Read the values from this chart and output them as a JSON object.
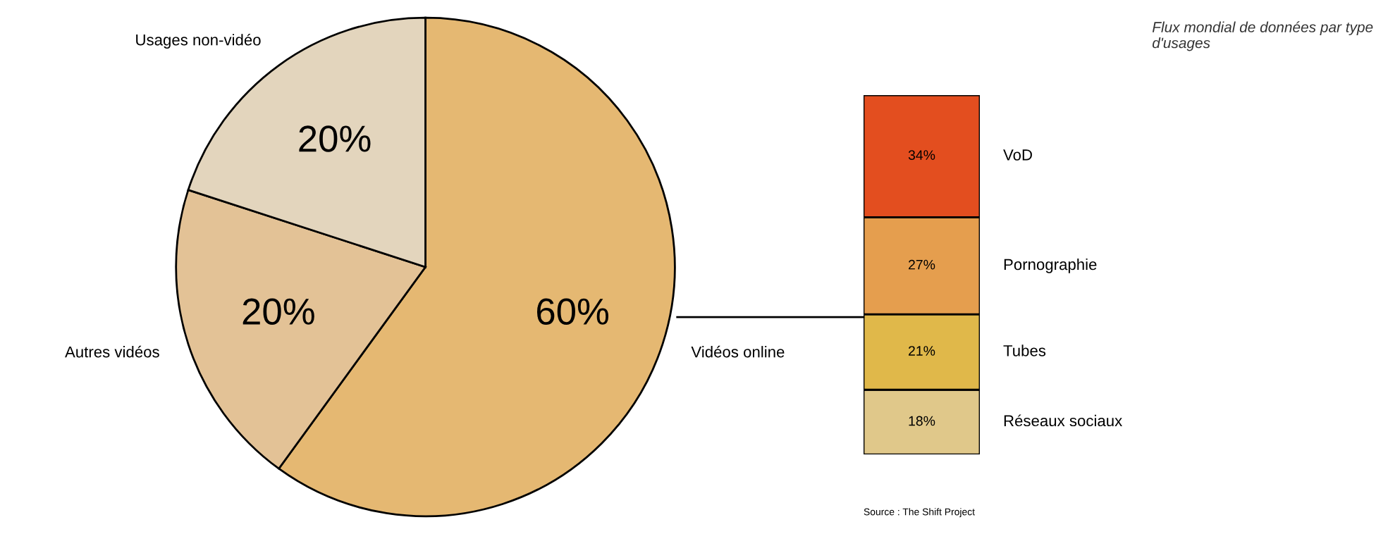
{
  "chart_data": [
    {
      "type": "pie",
      "categories": [
        "Vidéos online",
        "Autres vidéos",
        "Usages non-vidéo"
      ],
      "values": [
        60,
        20,
        20
      ],
      "colors": [
        "#e5b872",
        "#e3c296",
        "#e3d5bd"
      ],
      "value_labels": [
        "60%",
        "20%",
        "20%"
      ],
      "legend": false
    },
    {
      "type": "bar",
      "stacked": true,
      "categories": [
        null
      ],
      "legend": false,
      "series": [
        {
          "name": "Réseaux sociaux",
          "color": "#e0c88a",
          "values": [
            18
          ],
          "value_labels": [
            "18%"
          ]
        },
        {
          "name": "Tubes",
          "color": "#e0b84a",
          "values": [
            21
          ],
          "value_labels": [
            "21%"
          ]
        },
        {
          "name": "Pornographie",
          "color": "#e59e4e",
          "values": [
            27
          ],
          "value_labels": [
            "27%"
          ]
        },
        {
          "name": "VoD",
          "color": "#e34e1f",
          "values": [
            34
          ],
          "value_labels": [
            "34%"
          ]
        }
      ],
      "annotations": [
        "Flux mondial de données par type d'usages",
        "Source : The Shift Project"
      ]
    }
  ]
}
